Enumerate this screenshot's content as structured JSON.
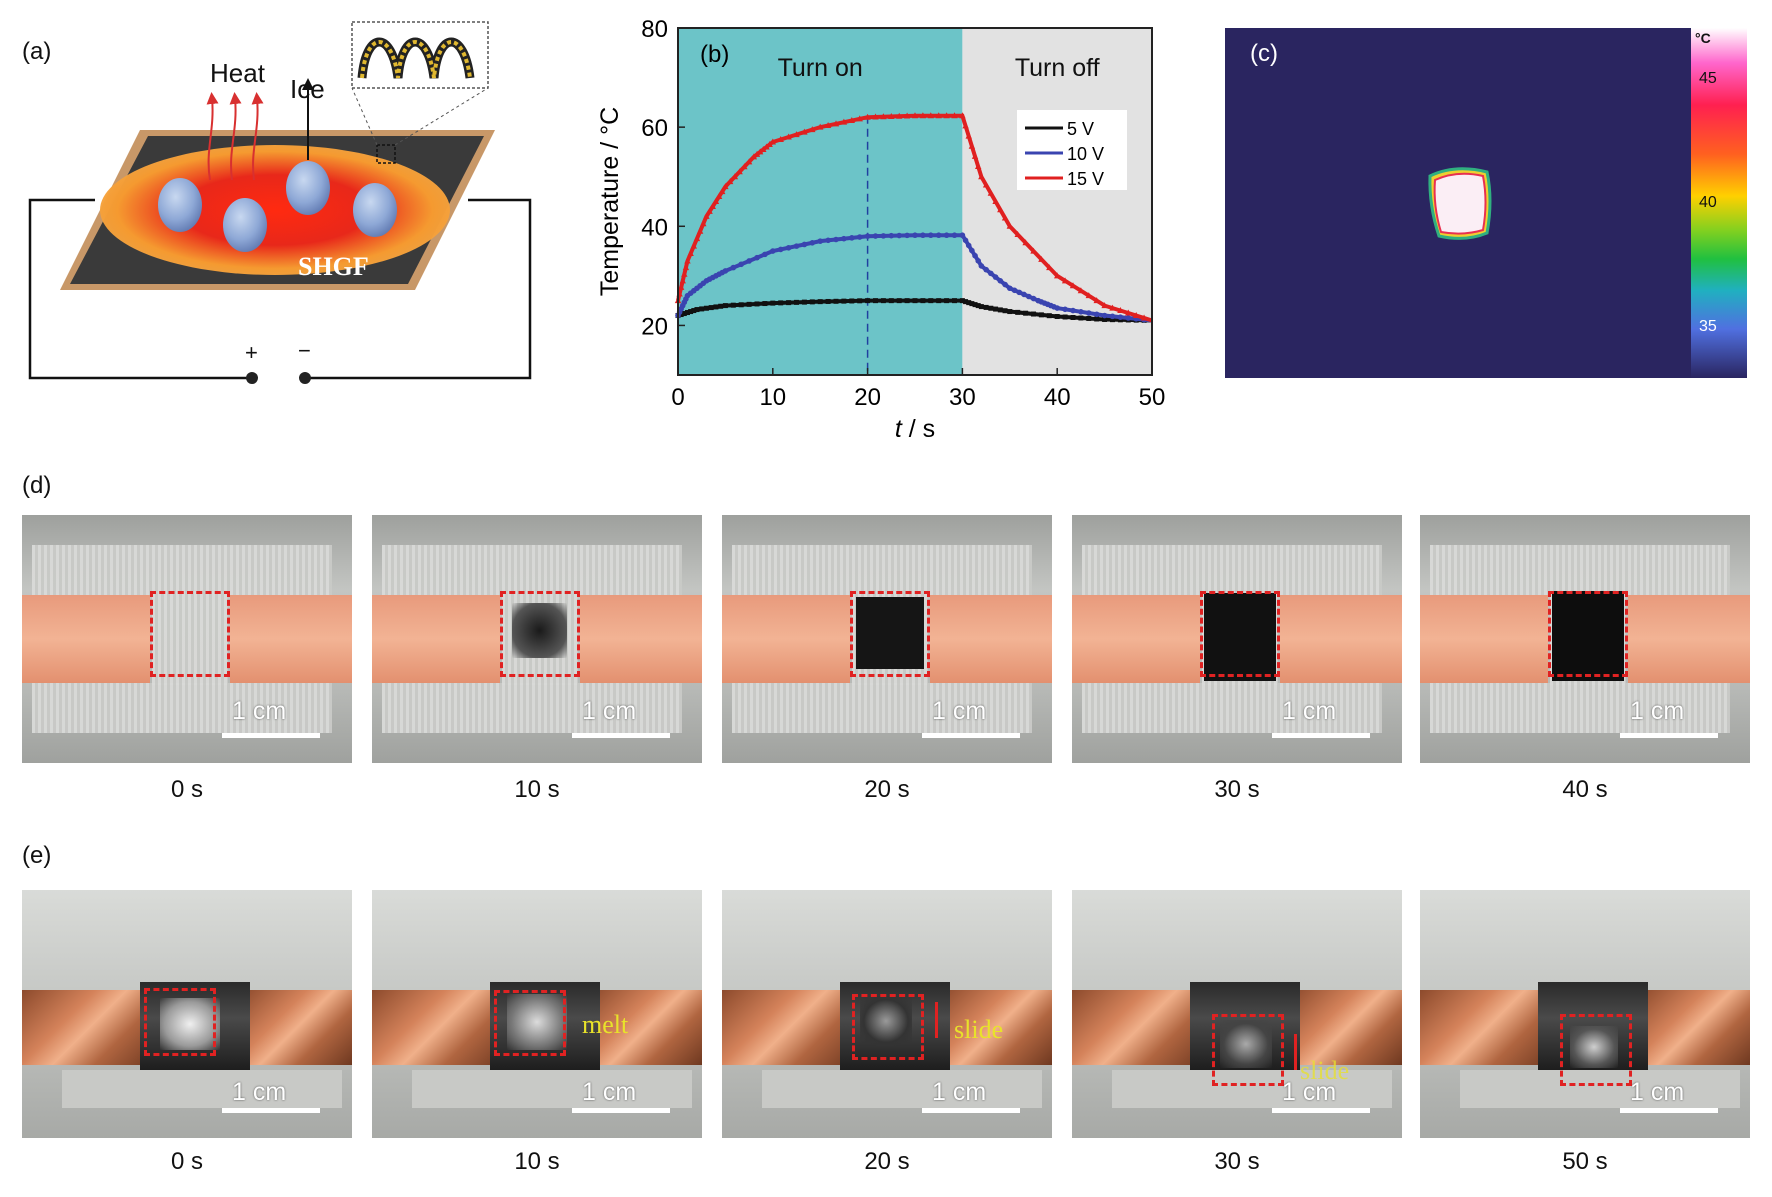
{
  "panel_labels": {
    "a": "(a)",
    "b": "(b)",
    "c": "(c)",
    "d": "(d)",
    "e": "(e)"
  },
  "panel_a": {
    "heat_label": "Heat",
    "ice_label": "Ice",
    "film_label": "SHGF",
    "plus_label": "+",
    "minus_label": "−"
  },
  "chart_data": {
    "type": "line",
    "xlabel": "t / s",
    "ylabel": "Temperature / °C",
    "xlim": [
      0,
      50
    ],
    "ylim": [
      10,
      80
    ],
    "xticks": [
      0,
      10,
      20,
      30,
      40,
      50
    ],
    "yticks": [
      20,
      40,
      60,
      80
    ],
    "regions": [
      {
        "label": "Turn on",
        "x_range": [
          0,
          30
        ],
        "color": "#6cc4c8"
      },
      {
        "label": "Turn off",
        "x_range": [
          30,
          50
        ],
        "color": "#e2e2e2"
      }
    ],
    "vline_x": 20,
    "legend_position": "upper-right",
    "series": [
      {
        "name": "5 V",
        "color": "#111111",
        "marker": "square",
        "x": [
          0,
          2,
          5,
          10,
          15,
          20,
          25,
          30,
          32,
          35,
          40,
          45,
          50
        ],
        "y": [
          22,
          23.2,
          24,
          24.5,
          24.8,
          25,
          25,
          25,
          23.8,
          22.8,
          21.8,
          21.2,
          21
        ]
      },
      {
        "name": "10 V",
        "color": "#3a44b0",
        "marker": "circle",
        "x": [
          0,
          1,
          3,
          5,
          10,
          15,
          20,
          25,
          30,
          32,
          35,
          38,
          40,
          45,
          50
        ],
        "y": [
          22,
          26,
          29,
          31,
          35,
          37,
          38,
          38.2,
          38.2,
          32,
          27.5,
          25,
          23.5,
          22,
          21
        ]
      },
      {
        "name": "15 V",
        "color": "#e02020",
        "marker": "triangle",
        "x": [
          0,
          1,
          3,
          5,
          8,
          10,
          15,
          20,
          25,
          30,
          32,
          35,
          40,
          45,
          50
        ],
        "y": [
          25,
          33,
          42,
          48,
          54,
          57,
          60,
          62,
          62.3,
          62.3,
          50,
          40,
          30,
          24,
          21
        ]
      }
    ]
  },
  "panel_c": {
    "unit": "°C",
    "ticks": [
      "45",
      "40",
      "35"
    ]
  },
  "row_d": {
    "frames": [
      "0 s",
      "10 s",
      "20 s",
      "30 s",
      "40 s"
    ],
    "scale_text": "1 cm"
  },
  "row_e": {
    "frames": [
      "0 s",
      "10 s",
      "20 s",
      "30 s",
      "50 s"
    ],
    "scale_text": "1 cm",
    "annotations": {
      "melt": "melt",
      "slide1": "slide",
      "slide2": "slide"
    }
  }
}
